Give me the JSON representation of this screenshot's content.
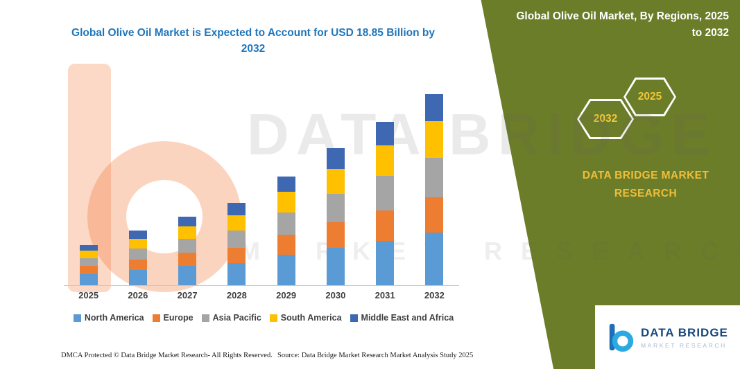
{
  "title": {
    "text": "Global Olive Oil Market is Expected to Account for USD 18.85 Billion by 2032",
    "color": "#2076BC"
  },
  "watermark": {
    "line1": "DATA BRIDGE",
    "line2": "MARKET RESEARCH",
    "logo": "data-bridge-b-watermark"
  },
  "panel": {
    "bg_color": "#6C7D2A",
    "title": "Global Olive Oil Market, By Regions, 2025 to 2032",
    "hexagon_left": "2032",
    "hexagon_right": "2025",
    "hexagon_text_color": "#F2C73B",
    "brand_text": "DATA BRIDGE MARKET RESEARCH",
    "brand_text_color": "#EFBE3A"
  },
  "chart_data": {
    "type": "bar",
    "stacked": true,
    "unit": "USD Billion",
    "title": "Global Olive Oil Market is Expected to Account for USD 18.85 Billion by 2032",
    "categories": [
      "2025",
      "2026",
      "2027",
      "2028",
      "2029",
      "2030",
      "2031",
      "2032"
    ],
    "series": [
      {
        "name": "North America",
        "color": "#5B9BD5",
        "values": [
          1.1,
          1.5,
          1.9,
          2.2,
          3.0,
          3.7,
          4.4,
          5.2
        ]
      },
      {
        "name": "Europe",
        "color": "#ED7D31",
        "values": [
          0.8,
          1.0,
          1.3,
          1.5,
          2.0,
          2.5,
          3.0,
          3.5
        ]
      },
      {
        "name": "Asia Pacific",
        "color": "#A5A5A5",
        "values": [
          0.8,
          1.1,
          1.4,
          1.7,
          2.2,
          2.8,
          3.4,
          3.9
        ]
      },
      {
        "name": "South America",
        "color": "#FFC000",
        "values": [
          0.7,
          1.0,
          1.2,
          1.5,
          2.0,
          2.5,
          3.0,
          3.6
        ]
      },
      {
        "name": "Middle East and Africa",
        "color": "#3E68B2",
        "values": [
          0.6,
          0.8,
          1.0,
          1.2,
          1.5,
          2.0,
          2.3,
          2.65
        ]
      }
    ],
    "xlabel": "",
    "ylabel": "",
    "ylim": [
      0,
      18.85
    ],
    "grid": false,
    "legend_position": "bottom",
    "values_estimated": true
  },
  "footer": {
    "dmca": "DMCA Protected © Data Bridge Market Research-  All Rights Reserved.",
    "source": "Source: Data Bridge Market Research  Market Analysis Study 2025"
  },
  "logo": {
    "name": "DATA BRIDGE",
    "subtitle": "MARKET RESEARCH"
  }
}
